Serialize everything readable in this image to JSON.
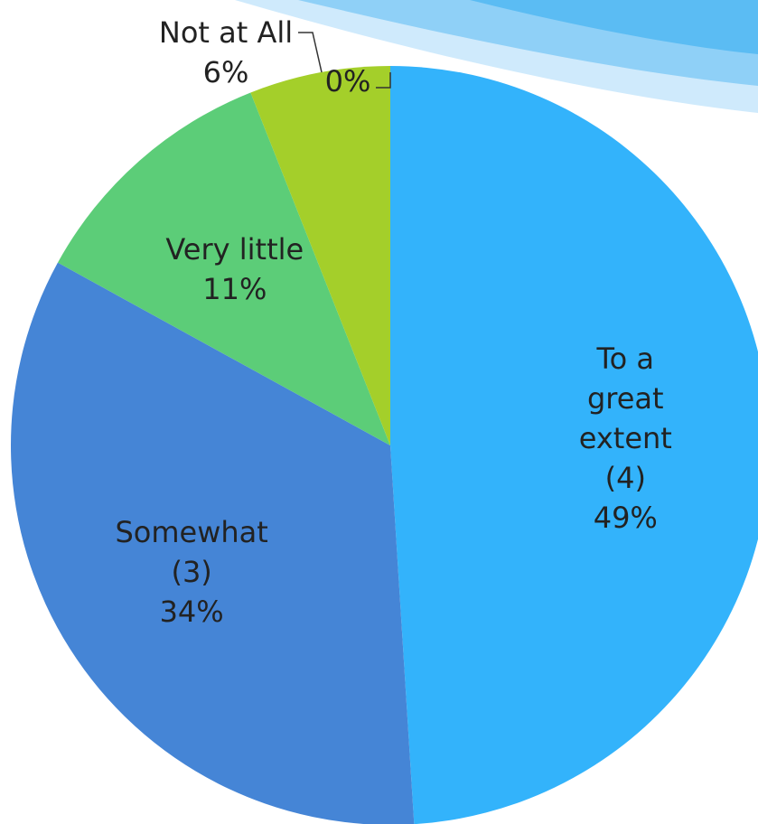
{
  "chart_data": {
    "type": "pie",
    "categories": [
      "To a great extent (4)",
      "Somewhat (3)",
      "Very little",
      "Not at All",
      null
    ],
    "values": [
      49,
      34,
      11,
      6,
      0
    ],
    "value_labels": [
      "49%",
      "34%",
      "11%",
      "6%",
      "0%"
    ],
    "colors": [
      "#33b3fb",
      "#4585d6",
      "#5ccd78",
      "#a4cf2a",
      "#8fd14f"
    ]
  }
}
